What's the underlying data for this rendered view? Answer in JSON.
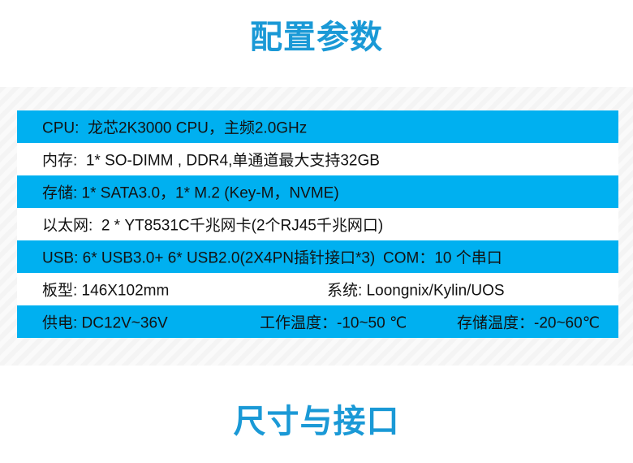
{
  "titles": {
    "config": "配置参数",
    "dimensions": "尺寸与接口"
  },
  "colors": {
    "row_blue": "#00b0f0",
    "title_blue": "#1a99d6",
    "panel_stripe": "#f4f4f4"
  },
  "spec_table": {
    "rows": [
      {
        "cells": [
          "CPU:  龙芯2K3000 CPU，主频2.0GHz"
        ]
      },
      {
        "cells": [
          "内存:  1* SO-DIMM , DDR4,单通道最大支持32GB"
        ]
      },
      {
        "cells": [
          "存储: 1* SATA3.0，1* M.2 (Key-M，NVME)"
        ]
      },
      {
        "cells": [
          "以太网:  2 * YT8531C千兆网卡(2个RJ45千兆网口)"
        ]
      },
      {
        "cells": [
          "USB: 6* USB3.0+ 6* USB2.0(2X4PN插针接口*3)",
          "COM：10 个串口"
        ]
      },
      {
        "cells": [
          "板型: 146X102mm",
          "系统: Loongnix/Kylin/UOS"
        ]
      },
      {
        "cells": [
          "供电: DC12V~36V",
          "工作温度：-10~50 ℃",
          "存储温度：-20~60℃"
        ]
      }
    ]
  }
}
